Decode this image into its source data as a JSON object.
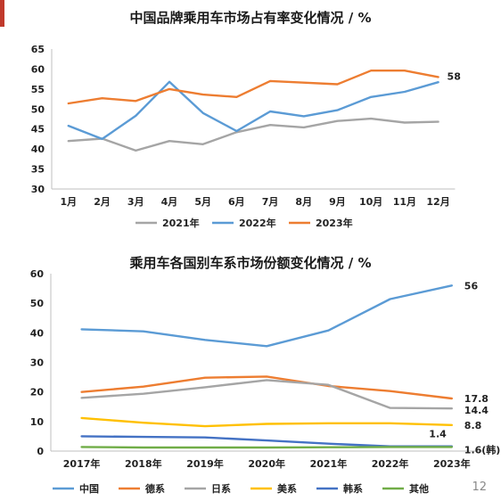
{
  "page": {
    "number": "12",
    "accent_color": "#c0392b"
  },
  "chart_data": [
    {
      "type": "line",
      "title": "中国品牌乘用车市场占有率变化情况 / %",
      "categories": [
        "1月",
        "2月",
        "3月",
        "4月",
        "5月",
        "6月",
        "7月",
        "8月",
        "9月",
        "10月",
        "11月",
        "12月"
      ],
      "ylim": [
        30,
        65
      ],
      "yticks": [
        30,
        35,
        40,
        45,
        50,
        55,
        60,
        65
      ],
      "grid": false,
      "legend_position": "bottom",
      "series": [
        {
          "name": "2021年",
          "color": "#a5a5a5",
          "values": [
            42,
            42.6,
            39.6,
            42,
            41.2,
            44.2,
            46,
            45.4,
            47,
            47.6,
            46.6,
            46.8
          ]
        },
        {
          "name": "2022年",
          "color": "#5b9bd5",
          "values": [
            45.8,
            42.5,
            48.3,
            56.8,
            49,
            44.5,
            49.4,
            48.2,
            49.7,
            53,
            54.3,
            56.7
          ]
        },
        {
          "name": "2023年",
          "color": "#ed7d31",
          "values": [
            51.4,
            52.7,
            52,
            55,
            53.6,
            53,
            57,
            56.6,
            56.2,
            59.6,
            59.6,
            58
          ]
        }
      ],
      "data_labels": [
        {
          "series": 2,
          "index": 11,
          "text": "58"
        }
      ]
    },
    {
      "type": "line",
      "title": "乘用车各国别车系市场份额变化情况 / %",
      "categories": [
        "2017年",
        "2018年",
        "2019年",
        "2020年",
        "2021年",
        "2022年",
        "2023年"
      ],
      "ylim": [
        0,
        60
      ],
      "yticks": [
        0,
        10,
        20,
        30,
        40,
        50,
        60
      ],
      "grid": false,
      "legend_position": "bottom",
      "series": [
        {
          "name": "中国",
          "color": "#5b9bd5",
          "values": [
            41.2,
            40.5,
            37.6,
            35.5,
            40.8,
            51.4,
            56
          ]
        },
        {
          "name": "德系",
          "color": "#ed7d31",
          "values": [
            20,
            21.8,
            24.8,
            25.2,
            22,
            20.3,
            17.8
          ]
        },
        {
          "name": "日系",
          "color": "#a5a5a5",
          "values": [
            18,
            19.4,
            21.6,
            24,
            22.4,
            14.6,
            14.4
          ]
        },
        {
          "name": "美系",
          "color": "#ffc000",
          "values": [
            11.2,
            9.6,
            8.4,
            9.2,
            9.4,
            9.4,
            8.8
          ]
        },
        {
          "name": "韩系",
          "color": "#4472c4",
          "values": [
            5,
            4.8,
            4.6,
            3.6,
            2.5,
            1.6,
            1.6
          ]
        },
        {
          "name": "其他",
          "color": "#70ad47",
          "values": [
            1.4,
            1.2,
            1.2,
            1.2,
            1.3,
            1.4,
            1.4
          ]
        }
      ],
      "data_labels": [
        {
          "series": 0,
          "index": 6,
          "text": "56"
        },
        {
          "series": 1,
          "index": 6,
          "text": "17.8"
        },
        {
          "series": 2,
          "index": 6,
          "text": "14.4"
        },
        {
          "series": 3,
          "index": 6,
          "text": "8.8"
        },
        {
          "series": 5,
          "index": 6,
          "text": "1.4"
        },
        {
          "series": 4,
          "index": 6,
          "text": "1.6(韩)"
        }
      ]
    }
  ]
}
